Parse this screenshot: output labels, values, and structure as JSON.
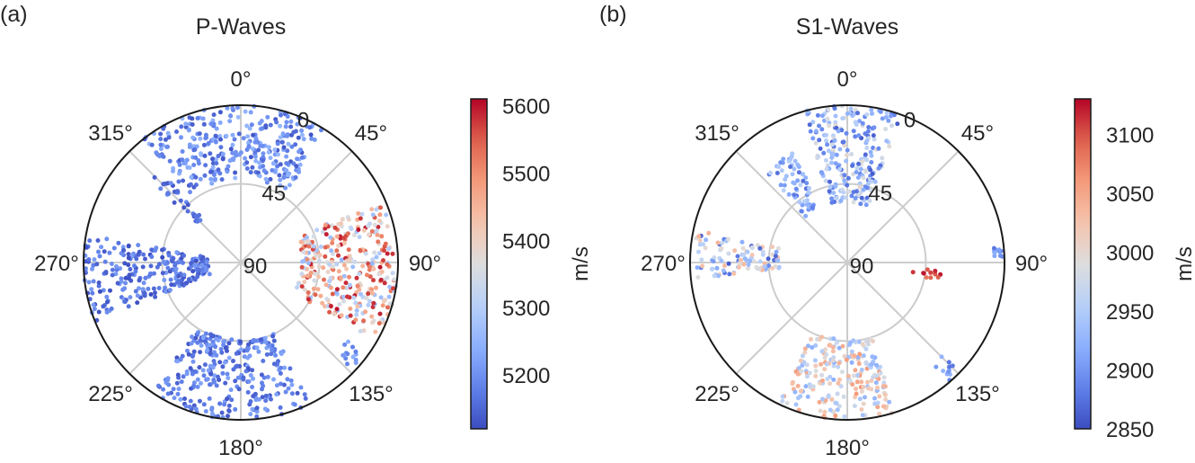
{
  "chart_data": [
    {
      "panel_label": "(a)",
      "type": "scatter",
      "projection": "polar",
      "title": "P-Waves",
      "theta_zero": "top",
      "theta_direction": "clockwise",
      "angle_ticks": [
        "0°",
        "45°",
        "90°",
        "135°",
        "180°",
        "225°",
        "270°",
        "315°"
      ],
      "radial_ticks": [
        "0",
        "45",
        "90"
      ],
      "radial_axis": "polar angle (0 at rim, 90 at centre)",
      "grid": true,
      "colormap": "coolwarm",
      "colorbar": {
        "label": "m/s",
        "min": 5120,
        "max": 5610,
        "ticks": [
          5200,
          5300,
          5400,
          5500,
          5600
        ],
        "tick_labels": [
          "5200",
          "5300",
          "5400",
          "5500",
          "5600"
        ]
      },
      "clusters": [
        {
          "theta_min": 322,
          "theta_max": 393,
          "r_min": 0,
          "r_max": 42,
          "v_min": 5130,
          "v_max": 5260
        },
        {
          "theta_min": 312,
          "theta_max": 319,
          "r_min": 18,
          "r_max": 58,
          "v_min": 5130,
          "v_max": 5200
        },
        {
          "theta_min": 248,
          "theta_max": 280,
          "r_min": 0,
          "r_max": 72,
          "v_min": 5120,
          "v_max": 5220
        },
        {
          "theta_min": 154,
          "theta_max": 214,
          "r_min": 0,
          "r_max": 46,
          "v_min": 5130,
          "v_max": 5230
        },
        {
          "theta_min": 66,
          "theta_max": 120,
          "r_min": 0,
          "r_max": 55,
          "v_min": 5250,
          "v_max": 5600
        },
        {
          "theta_min": 126,
          "theta_max": 134,
          "r_min": 0,
          "r_max": 16,
          "v_min": 5180,
          "v_max": 5260
        }
      ]
    },
    {
      "panel_label": "(b)",
      "type": "scatter",
      "projection": "polar",
      "title": "S1-Waves",
      "theta_zero": "top",
      "theta_direction": "clockwise",
      "angle_ticks": [
        "0°",
        "45°",
        "90°",
        "135°",
        "180°",
        "225°",
        "270°",
        "315°"
      ],
      "radial_ticks": [
        "0",
        "45",
        "90"
      ],
      "radial_axis": "polar angle (0 at rim, 90 at centre)",
      "grid": true,
      "colormap": "coolwarm",
      "colorbar": {
        "label": "m/s",
        "min": 2850,
        "max": 3130,
        "ticks": [
          2850,
          2900,
          2950,
          3000,
          3050,
          3100
        ],
        "tick_labels": [
          "2850",
          "2900",
          "2950",
          "3000",
          "3050",
          "3100"
        ]
      },
      "clusters": [
        {
          "theta_min": 344,
          "theta_max": 380,
          "r_min": 0,
          "r_max": 56,
          "v_min": 2860,
          "v_max": 3000
        },
        {
          "theta_min": 318,
          "theta_max": 334,
          "r_min": 20,
          "r_max": 56,
          "v_min": 2870,
          "v_max": 2960
        },
        {
          "theta_min": 264,
          "theta_max": 282,
          "r_min": 2,
          "r_max": 52,
          "v_min": 2860,
          "v_max": 3040
        },
        {
          "theta_min": 162,
          "theta_max": 206,
          "r_min": 0,
          "r_max": 46,
          "v_min": 2920,
          "v_max": 3060
        },
        {
          "theta_min": 95,
          "theta_max": 101,
          "r_min": 36,
          "r_max": 54,
          "v_min": 3080,
          "v_max": 3130
        },
        {
          "theta_min": 134,
          "theta_max": 140,
          "r_min": 0,
          "r_max": 14,
          "v_min": 2870,
          "v_max": 2930
        },
        {
          "theta_min": 84,
          "theta_max": 88,
          "r_min": 0,
          "r_max": 6,
          "v_min": 2870,
          "v_max": 2920
        }
      ]
    }
  ]
}
